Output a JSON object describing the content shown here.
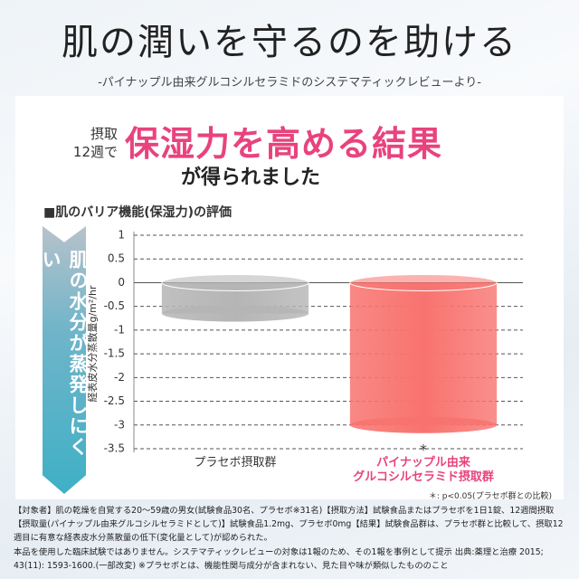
{
  "chart_data": {
    "type": "bar",
    "title": "肌の潤いを守るのを助ける",
    "subtitle": "-パイナップル由来グルコシルセラミドのシステマティックレビューより-",
    "intake_period": "摂取\n12週で",
    "headline": "保湿力を高める結果",
    "headline_sub": "が得られました",
    "section_title": "■肌のバリア機能(保湿力)の評価",
    "banner": "肌の水分が蒸発しにくい",
    "y_label": "経表皮水分蒸散量g/m²/hr",
    "categories": [
      "プラセボ摂取群",
      "パイナップル由来\nグルコシルセラミド摂取群"
    ],
    "values": [
      -0.65,
      -3.0
    ],
    "colors": [
      "#b5b5b5",
      "#f8736f"
    ],
    "category_colors": [
      "#333333",
      "#e8437d"
    ],
    "significance": [
      null,
      "*"
    ],
    "ylim": [
      -3.5,
      1
    ],
    "yticks": [
      1,
      0.5,
      0,
      -0.5,
      -1,
      -1.5,
      -2,
      -2.5,
      -3,
      -3.5
    ],
    "grid": true,
    "significance_note": "＊: p<0.05(プラセボ群との比較)",
    "footnote": "【対象者】肌の乾燥を自覚する20〜59歳の男女(試験食品30名、プラセボ※31名)【摂取方法】試験食品またはプラセボを1日1錠、12週間摂取【摂取量(パイナップル由来グルコシルセラミドとして)】試験食品1.2mg、プラセボ0mg【結果】試験食品群は、プラセボ群と比較して、摂取12週目に有意な経表皮水分蒸散量の低下(変化量として)が認められた。\n本品を使用した臨床試験ではありません。システマティックレビューの対象は1報のため、その1報を事例として提示 出典:薬理と治療 2015; 43(11): 1593-1600.(一部改変) ※プラセボとは、機能性関与成分が含まれない、見た目や味が類似したもののこと"
  }
}
